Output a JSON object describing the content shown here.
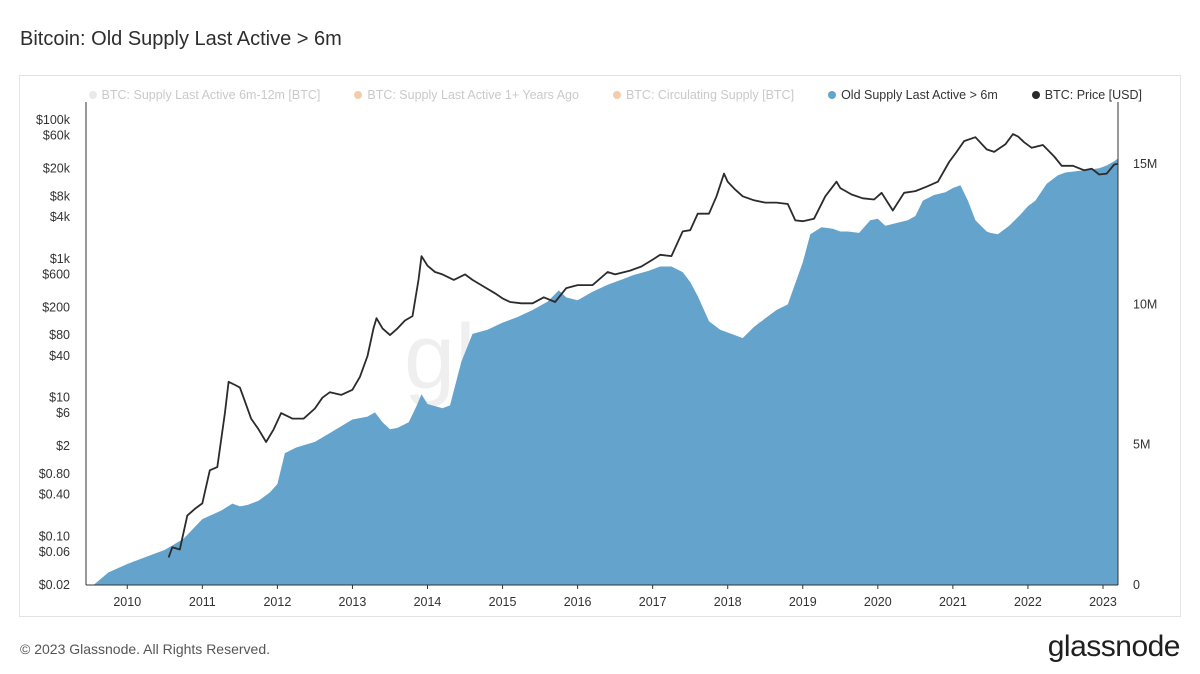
{
  "header": {
    "title": "Bitcoin: Old Supply Last Active > 6m"
  },
  "legend": {
    "items": [
      {
        "label": "BTC: Supply Last Active 6m-12m [BTC]",
        "color": "#d9d9d9",
        "state": "dim"
      },
      {
        "label": "BTC: Supply Last Active 1+ Years Ago",
        "color": "#e8a26c",
        "state": "dim"
      },
      {
        "label": "BTC: Circulating Supply [BTC]",
        "color": "#e8a26c",
        "state": "dim"
      },
      {
        "label": "Old Supply Last Active > 6m",
        "color": "#64a3cc",
        "state": "active"
      },
      {
        "label": "BTC: Price [USD]",
        "color": "#2b2b2b",
        "state": "active"
      }
    ]
  },
  "watermark": "glassnode",
  "footer": {
    "copyright": "© 2023 Glassnode. All Rights Reserved.",
    "brand": "glassnode"
  },
  "chart_data": {
    "type": "area",
    "title": "Bitcoin: Old Supply Last Active > 6m",
    "xlabel": "",
    "ylabel": "",
    "x_range": [
      2009.45,
      2023.2
    ],
    "x_ticks": [
      "2010",
      "2011",
      "2012",
      "2013",
      "2014",
      "2015",
      "2016",
      "2017",
      "2018",
      "2019",
      "2020",
      "2021",
      "2022",
      "2023"
    ],
    "y_left": {
      "scale": "log",
      "range": [
        0.02,
        150000
      ],
      "ticks": [
        {
          "label": "$100k",
          "value": 100000
        },
        {
          "label": "$60k",
          "value": 60000
        },
        {
          "label": "$20k",
          "value": 20000
        },
        {
          "label": "$8k",
          "value": 8000
        },
        {
          "label": "$4k",
          "value": 4000
        },
        {
          "label": "$1k",
          "value": 1000
        },
        {
          "label": "$600",
          "value": 600
        },
        {
          "label": "$200",
          "value": 200
        },
        {
          "label": "$80",
          "value": 80
        },
        {
          "label": "$40",
          "value": 40
        },
        {
          "label": "$10",
          "value": 10
        },
        {
          "label": "$6",
          "value": 6
        },
        {
          "label": "$2",
          "value": 2
        },
        {
          "label": "$0.80",
          "value": 0.8
        },
        {
          "label": "$0.40",
          "value": 0.4
        },
        {
          "label": "$0.10",
          "value": 0.1
        },
        {
          "label": "$0.06",
          "value": 0.06
        },
        {
          "label": "$0.02",
          "value": 0.02
        }
      ]
    },
    "y_right": {
      "scale": "linear",
      "range": [
        0,
        17000000
      ],
      "ticks": [
        {
          "label": "15M",
          "value": 15000000
        },
        {
          "label": "10M",
          "value": 10000000
        },
        {
          "label": "5M",
          "value": 5000000
        },
        {
          "label": "0",
          "value": 0
        }
      ]
    },
    "grid": false,
    "legend_position": "top-right",
    "series": [
      {
        "name": "Old Supply Last Active > 6m",
        "type": "area",
        "axis": "right",
        "color": "#64a3cc",
        "x": [
          2009.55,
          2009.75,
          2010.0,
          2010.25,
          2010.5,
          2010.75,
          2011.0,
          2011.25,
          2011.4,
          2011.5,
          2011.6,
          2011.75,
          2011.9,
          2012.0,
          2012.1,
          2012.25,
          2012.5,
          2012.75,
          2013.0,
          2013.2,
          2013.3,
          2013.4,
          2013.5,
          2013.6,
          2013.75,
          2013.85,
          2013.92,
          2014.0,
          2014.2,
          2014.3,
          2014.45,
          2014.6,
          2014.8,
          2015.0,
          2015.2,
          2015.4,
          2015.6,
          2015.75,
          2015.85,
          2016.0,
          2016.2,
          2016.4,
          2016.6,
          2016.75,
          2016.95,
          2017.1,
          2017.25,
          2017.4,
          2017.5,
          2017.6,
          2017.75,
          2017.9,
          2018.0,
          2018.1,
          2018.2,
          2018.35,
          2018.5,
          2018.65,
          2018.8,
          2019.0,
          2019.1,
          2019.25,
          2019.4,
          2019.5,
          2019.6,
          2019.75,
          2019.9,
          2020.0,
          2020.1,
          2020.25,
          2020.4,
          2020.5,
          2020.6,
          2020.75,
          2020.9,
          2021.0,
          2021.1,
          2021.2,
          2021.3,
          2021.45,
          2021.5,
          2021.6,
          2021.75,
          2021.9,
          2022.0,
          2022.1,
          2022.25,
          2022.4,
          2022.5,
          2022.65,
          2022.8,
          2022.95,
          2023.05,
          2023.15,
          2023.2
        ],
        "values": [
          0,
          450000,
          750000,
          1000000,
          1250000,
          1650000,
          2350000,
          2650000,
          2900000,
          2800000,
          2850000,
          3000000,
          3300000,
          3600000,
          4700000,
          4900000,
          5100000,
          5500000,
          5900000,
          6000000,
          6150000,
          5800000,
          5550000,
          5600000,
          5800000,
          6350000,
          6800000,
          6450000,
          6300000,
          6400000,
          7950000,
          8950000,
          9100000,
          9350000,
          9550000,
          9800000,
          10100000,
          10500000,
          10250000,
          10150000,
          10450000,
          10700000,
          10900000,
          11050000,
          11200000,
          11350000,
          11350000,
          11150000,
          10800000,
          10300000,
          9400000,
          9100000,
          9000000,
          8900000,
          8800000,
          9200000,
          9500000,
          9800000,
          10000000,
          11500000,
          12500000,
          12750000,
          12700000,
          12600000,
          12600000,
          12550000,
          13000000,
          13050000,
          12800000,
          12900000,
          13000000,
          13150000,
          13700000,
          13900000,
          14000000,
          14150000,
          14250000,
          13700000,
          13000000,
          12600000,
          12550000,
          12500000,
          12800000,
          13200000,
          13500000,
          13700000,
          14300000,
          14600000,
          14700000,
          14750000,
          14800000,
          14850000,
          14950000,
          15100000,
          15200000
        ]
      },
      {
        "name": "BTC: Price [USD]",
        "type": "line",
        "axis": "left",
        "color": "#2b2b2b",
        "x": [
          2010.55,
          2010.6,
          2010.7,
          2010.8,
          2010.9,
          2011.0,
          2011.1,
          2011.2,
          2011.3,
          2011.35,
          2011.45,
          2011.5,
          2011.55,
          2011.65,
          2011.75,
          2011.85,
          2011.95,
          2012.05,
          2012.2,
          2012.35,
          2012.5,
          2012.6,
          2012.7,
          2012.85,
          2013.0,
          2013.1,
          2013.2,
          2013.28,
          2013.32,
          2013.4,
          2013.5,
          2013.6,
          2013.7,
          2013.8,
          2013.88,
          2013.92,
          2014.0,
          2014.1,
          2014.2,
          2014.35,
          2014.5,
          2014.6,
          2014.75,
          2014.9,
          2015.0,
          2015.1,
          2015.25,
          2015.4,
          2015.55,
          2015.7,
          2015.85,
          2016.0,
          2016.2,
          2016.4,
          2016.5,
          2016.7,
          2016.85,
          2017.0,
          2017.1,
          2017.25,
          2017.4,
          2017.5,
          2017.6,
          2017.75,
          2017.85,
          2017.95,
          2018.0,
          2018.1,
          2018.2,
          2018.35,
          2018.5,
          2018.65,
          2018.8,
          2018.9,
          2019.0,
          2019.15,
          2019.3,
          2019.45,
          2019.5,
          2019.65,
          2019.8,
          2019.95,
          2020.05,
          2020.2,
          2020.35,
          2020.5,
          2020.65,
          2020.8,
          2020.95,
          2021.05,
          2021.15,
          2021.3,
          2021.45,
          2021.55,
          2021.7,
          2021.8,
          2021.87,
          2021.95,
          2022.05,
          2022.2,
          2022.35,
          2022.45,
          2022.6,
          2022.75,
          2022.85,
          2022.95,
          2023.05,
          2023.15,
          2023.2
        ],
        "values": [
          0.05,
          0.07,
          0.065,
          0.2,
          0.25,
          0.3,
          0.9,
          1.0,
          6.0,
          17.0,
          15.0,
          14.0,
          10.0,
          5.0,
          3.5,
          2.3,
          3.5,
          6.0,
          5.0,
          5.0,
          7.0,
          10.0,
          12.0,
          11.0,
          13.0,
          20.0,
          40.0,
          100.0,
          140.0,
          100.0,
          80.0,
          100.0,
          130.0,
          150.0,
          500.0,
          1100.0,
          800.0,
          650.0,
          600.0,
          500.0,
          600.0,
          500.0,
          400.0,
          320.0,
          270.0,
          240.0,
          230.0,
          230.0,
          280.0,
          240.0,
          380.0,
          420.0,
          420.0,
          650.0,
          600.0,
          680.0,
          780.0,
          980.0,
          1150.0,
          1100.0,
          2500.0,
          2600.0,
          4500.0,
          4500.0,
          8000.0,
          17000.0,
          13000.0,
          10000.0,
          8000.0,
          7000.0,
          6500.0,
          6500.0,
          6200.0,
          3600.0,
          3500.0,
          3800.0,
          8000.0,
          13000.0,
          10500.0,
          8500.0,
          7500.0,
          7200.0,
          9000.0,
          5000.0,
          9000.0,
          9500.0,
          11000.0,
          13000.0,
          25000.0,
          35000.0,
          50000.0,
          57000.0,
          38000.0,
          35000.0,
          45000.0,
          63000.0,
          58000.0,
          48000.0,
          40000.0,
          44000.0,
          30000.0,
          22000.0,
          22000.0,
          19000.0,
          20000.0,
          16500.0,
          17000.0,
          23000.0,
          23500.0
        ]
      }
    ]
  }
}
